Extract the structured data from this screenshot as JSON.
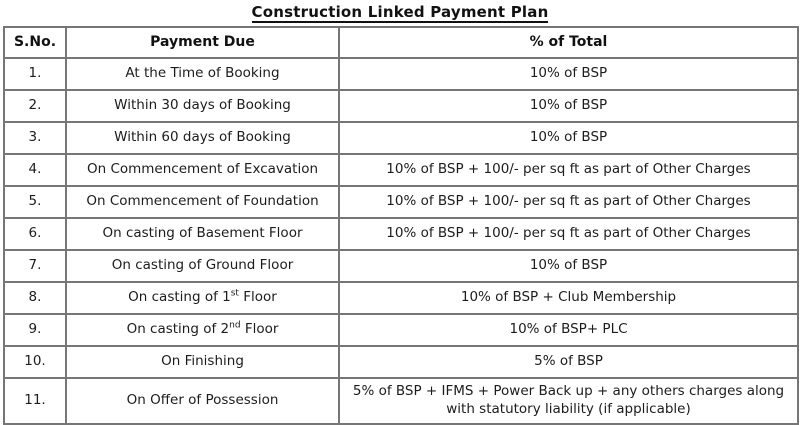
{
  "page": {
    "title": "Construction Linked Payment Plan"
  },
  "colors": {
    "border": "#767676",
    "text": "#1c1c1c",
    "background": "#ffffff"
  },
  "table": {
    "headers": {
      "sno": "S.No.",
      "payment": "Payment Due",
      "percent": "% of Total"
    },
    "rows": [
      {
        "sno": "1.",
        "payment": [
          "At the Time of Booking"
        ],
        "percent": "10% of BSP"
      },
      {
        "sno": "2.",
        "payment": [
          "Within 30 days of Booking"
        ],
        "percent": "10% of BSP"
      },
      {
        "sno": "3.",
        "payment": [
          "Within 60 days of Booking"
        ],
        "percent": "10% of BSP"
      },
      {
        "sno": "4.",
        "payment": [
          "On Commencement of Excavation"
        ],
        "percent": "10% of BSP + 100/- per sq ft as part of Other Charges"
      },
      {
        "sno": "5.",
        "payment": [
          "On Commencement of Foundation"
        ],
        "percent": "10% of BSP + 100/- per sq ft as part of Other Charges"
      },
      {
        "sno": "6.",
        "payment": [
          "On casting of Basement Floor"
        ],
        "percent": "10% of BSP + 100/- per sq ft as part of Other Charges"
      },
      {
        "sno": "7.",
        "payment": [
          "On casting of Ground Floor"
        ],
        "percent": "10% of BSP"
      },
      {
        "sno": "8.",
        "payment": [
          "On casting of 1",
          {
            "sup": "st"
          },
          " Floor"
        ],
        "percent": "10% of BSP + Club Membership"
      },
      {
        "sno": "9.",
        "payment": [
          "On casting of 2",
          {
            "sup": "nd"
          },
          " Floor"
        ],
        "percent": "10% of BSP+ PLC"
      },
      {
        "sno": "10.",
        "payment": [
          "On Finishing"
        ],
        "percent": "5% of BSP"
      },
      {
        "sno": "11.",
        "payment": [
          "On Offer of Possession"
        ],
        "percent": "5% of BSP + IFMS + Power Back up + any others charges along with statutory liability (if applicable)"
      }
    ]
  }
}
